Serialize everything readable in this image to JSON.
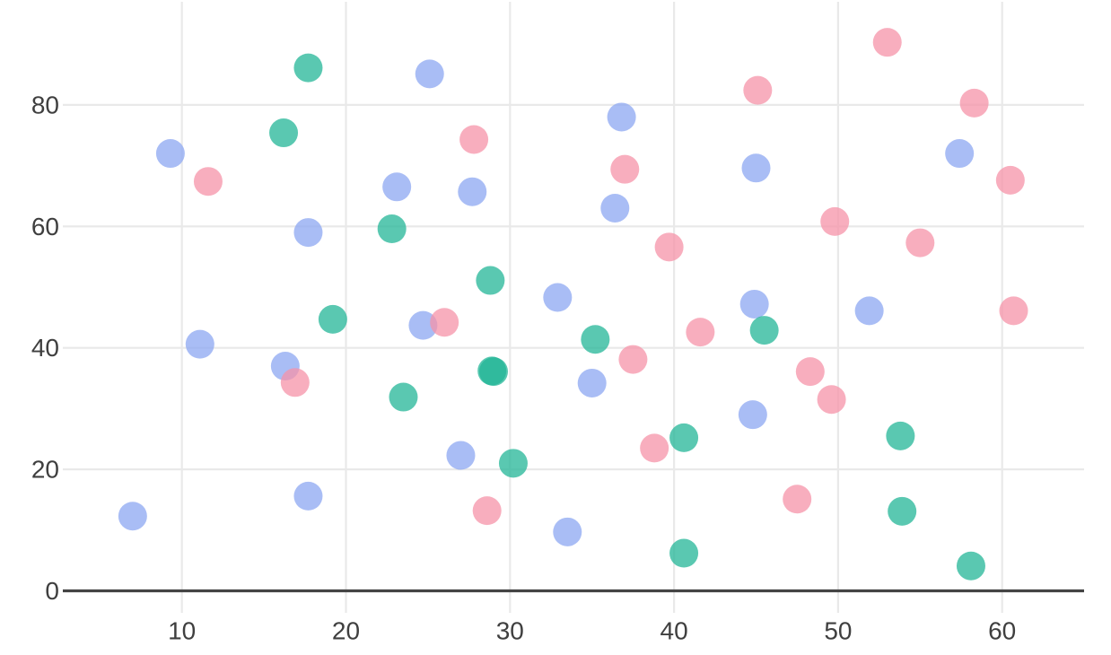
{
  "chart_data": {
    "type": "scatter",
    "title": "",
    "xlabel": "",
    "ylabel": "",
    "x_ticks": [
      10,
      20,
      30,
      40,
      50,
      60
    ],
    "y_ticks": [
      0,
      20,
      40,
      60,
      80
    ],
    "xlim": [
      2.5,
      66.5
    ],
    "ylim": [
      0,
      97
    ],
    "grid": true,
    "legend_position": "none",
    "marker_opacity": 0.75,
    "marker_radius_px": 16,
    "colors": {
      "grid": "#e9e9e9",
      "axis_line": "#444444",
      "tick_label": "#3f3f3f",
      "background": "#ffffff",
      "blue_rendered": "#a9bdf5",
      "green_rendered": "#5ac8b1",
      "pink_rendered": "#f8aebe"
    },
    "series": [
      {
        "name": "blue",
        "color": "#8CA7F2",
        "points": [
          [
            7.0,
            12.3
          ],
          [
            9.3,
            72.0
          ],
          [
            11.1,
            40.6
          ],
          [
            16.3,
            37.0
          ],
          [
            17.7,
            59.0
          ],
          [
            17.7,
            15.6
          ],
          [
            23.1,
            66.5
          ],
          [
            24.7,
            43.7
          ],
          [
            25.1,
            85.1
          ],
          [
            27.0,
            22.3
          ],
          [
            27.7,
            65.7
          ],
          [
            32.9,
            48.3
          ],
          [
            33.5,
            9.7
          ],
          [
            35.0,
            34.2
          ],
          [
            36.4,
            63.0
          ],
          [
            36.8,
            78.0
          ],
          [
            44.8,
            29.0
          ],
          [
            44.9,
            47.2
          ],
          [
            45.0,
            69.6
          ],
          [
            51.9,
            46.1
          ],
          [
            57.4,
            72.0
          ]
        ]
      },
      {
        "name": "green",
        "color": "#23B697",
        "points": [
          [
            16.2,
            75.4
          ],
          [
            17.7,
            86.1
          ],
          [
            19.2,
            44.7
          ],
          [
            22.8,
            59.6
          ],
          [
            23.5,
            31.9
          ],
          [
            28.8,
            51.1
          ],
          [
            28.9,
            36.2
          ],
          [
            29.0,
            36.1
          ],
          [
            30.2,
            21.0
          ],
          [
            35.2,
            41.4
          ],
          [
            40.6,
            25.2
          ],
          [
            40.6,
            6.2
          ],
          [
            45.5,
            42.9
          ],
          [
            53.8,
            25.5
          ],
          [
            53.9,
            13.1
          ],
          [
            58.1,
            4.1
          ]
        ]
      },
      {
        "name": "pink",
        "color": "#F693A8",
        "points": [
          [
            11.6,
            67.4
          ],
          [
            16.9,
            34.3
          ],
          [
            26.0,
            44.2
          ],
          [
            27.8,
            74.3
          ],
          [
            28.6,
            13.2
          ],
          [
            37.0,
            69.4
          ],
          [
            37.5,
            38.1
          ],
          [
            38.8,
            23.5
          ],
          [
            39.7,
            56.6
          ],
          [
            41.6,
            42.6
          ],
          [
            45.1,
            82.4
          ],
          [
            47.5,
            15.1
          ],
          [
            48.3,
            36.1
          ],
          [
            49.6,
            31.5
          ],
          [
            49.8,
            60.8
          ],
          [
            53.0,
            90.3
          ],
          [
            55.0,
            57.3
          ],
          [
            58.3,
            80.3
          ],
          [
            60.5,
            67.6
          ],
          [
            60.7,
            46.1
          ]
        ]
      }
    ]
  }
}
